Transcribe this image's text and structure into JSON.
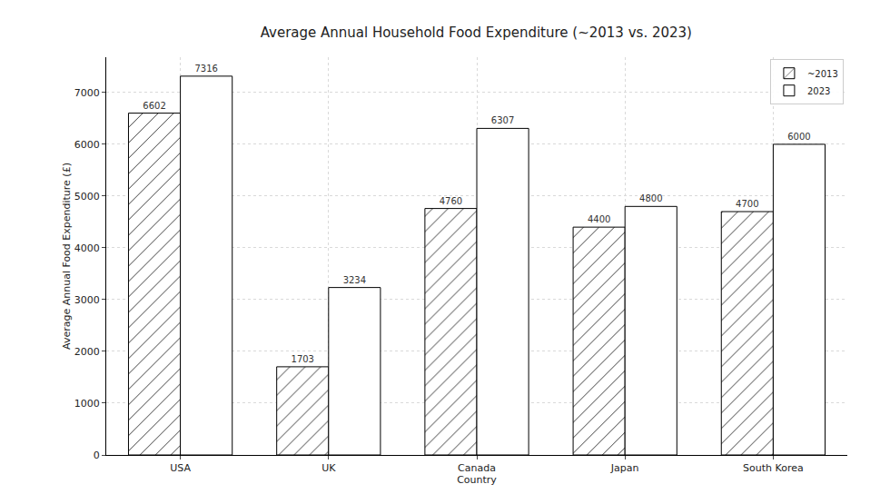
{
  "chart_data": {
    "type": "bar",
    "title": "Average Annual Household Food Expenditure (~2013 vs. 2023)",
    "x_label": "Country",
    "y_label": "Average Annual Food Expenditure (£)",
    "categories": [
      "USA",
      "UK",
      "Canada",
      "Japan",
      "South Korea"
    ],
    "series": [
      {
        "name": "~2013",
        "color": "#ffffff",
        "marker": "hatched",
        "values": [
          6602,
          1703,
          4760,
          4400,
          4700
        ]
      },
      {
        "name": "2023",
        "color": "#ffffff",
        "marker": "plain",
        "values": [
          7316,
          3234,
          6307,
          4800,
          6000
        ]
      }
    ],
    "ylim": [
      0,
      7682
    ],
    "yticks": [
      0,
      1000,
      2000,
      3000,
      4000,
      5000,
      6000,
      7000
    ],
    "grid": true,
    "legend": "upper right",
    "data_labels": true
  }
}
